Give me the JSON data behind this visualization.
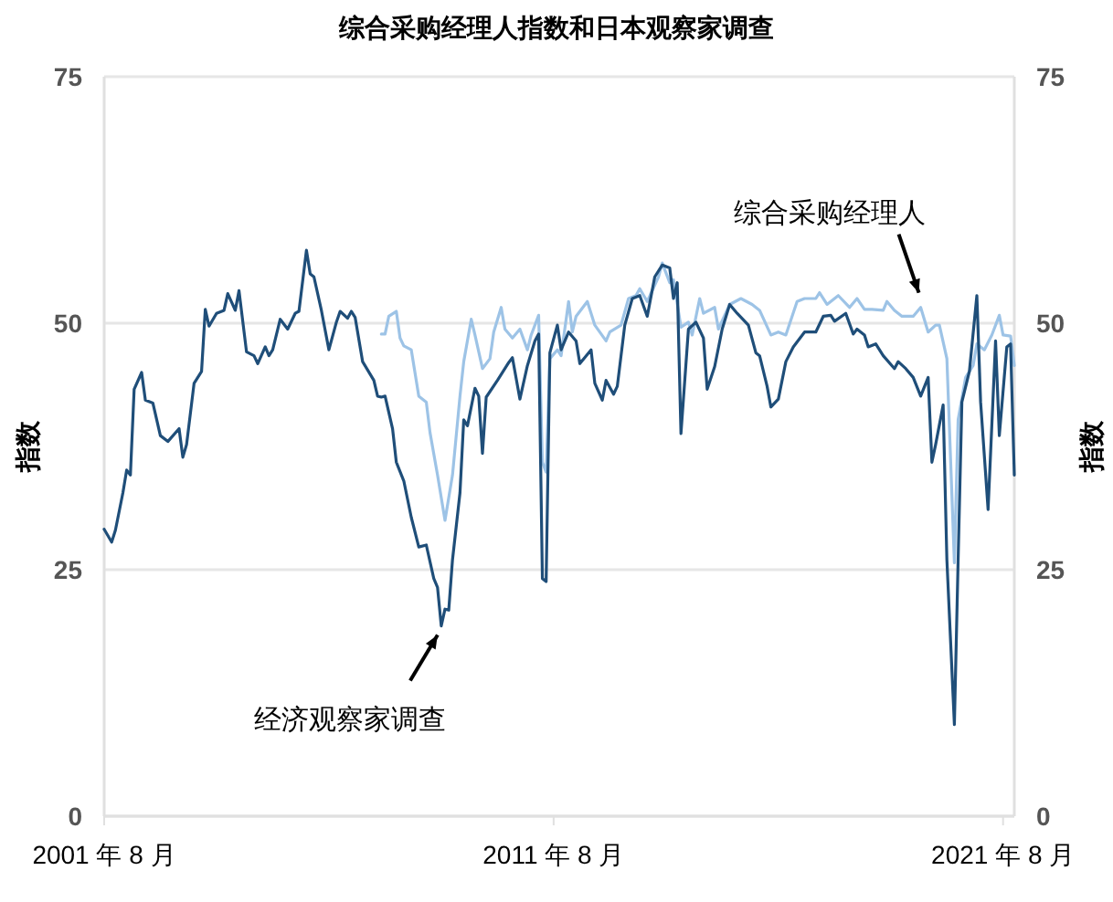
{
  "chart_data": {
    "type": "line",
    "title": "综合采购经理人指数和日本观察家调查",
    "ylabel": "指数",
    "y2label": "指数",
    "xlim": [
      "2001-08",
      "2021-11"
    ],
    "xticks": [
      {
        "value": "2001-08",
        "label": "2001 年 8 月"
      },
      {
        "value": "2011-08",
        "label": "2011 年 8 月"
      },
      {
        "value": "2021-08",
        "label": "2021 年 8 月"
      }
    ],
    "ylim": [
      0,
      75
    ],
    "yticks": [
      0,
      25,
      50,
      75
    ],
    "y2lim": [
      0,
      75
    ],
    "y2ticks": [
      0,
      25,
      50,
      75
    ],
    "grid": "y",
    "series": [
      {
        "color": "#1f4e79",
        "x": [
          "2001-08",
          "2001-10",
          "2001-11",
          "2002-01",
          "2002-02",
          "2002-03",
          "2002-04",
          "2002-06",
          "2002-07",
          "2002-09",
          "2002-11",
          "2003-01",
          "2003-04",
          "2003-05",
          "2003-06",
          "2003-08",
          "2003-10",
          "2003-11",
          "2003-12",
          "2004-02",
          "2004-04",
          "2004-05",
          "2004-07",
          "2004-08",
          "2004-10",
          "2004-12",
          "2005-01",
          "2005-03",
          "2005-04",
          "2005-05",
          "2005-07",
          "2005-09",
          "2005-11",
          "2005-12",
          "2006-02",
          "2006-03",
          "2006-04",
          "2006-06",
          "2006-08",
          "2006-10",
          "2006-11",
          "2007-01",
          "2007-02",
          "2007-03",
          "2007-05",
          "2007-08",
          "2007-09",
          "2007-10",
          "2007-11",
          "2008-01",
          "2008-02",
          "2008-04",
          "2008-06",
          "2008-08",
          "2008-10",
          "2008-12",
          "2009-01",
          "2009-02",
          "2009-03",
          "2009-04",
          "2009-05",
          "2009-07",
          "2009-08",
          "2009-09",
          "2009-11",
          "2009-12",
          "2010-01",
          "2010-02",
          "2010-05",
          "2010-08",
          "2010-09",
          "2010-11",
          "2011-01",
          "2011-03",
          "2011-04",
          "2011-05",
          "2011-06",
          "2011-07",
          "2011-09",
          "2011-10",
          "2011-12",
          "2012-02",
          "2012-03",
          "2012-06",
          "2012-07",
          "2012-09",
          "2012-10",
          "2012-12",
          "2013-01",
          "2013-03",
          "2013-05",
          "2013-07",
          "2013-09",
          "2013-11",
          "2014-01",
          "2014-03",
          "2014-04",
          "2014-05",
          "2014-06",
          "2014-08",
          "2014-10",
          "2014-12",
          "2015-01",
          "2015-03",
          "2015-05",
          "2015-07",
          "2015-09",
          "2015-12",
          "2016-02",
          "2016-03",
          "2016-05",
          "2016-06",
          "2016-08",
          "2016-10",
          "2016-12",
          "2017-03",
          "2017-06",
          "2017-08",
          "2017-10",
          "2017-11",
          "2018-02",
          "2018-04",
          "2018-05",
          "2018-07",
          "2018-08",
          "2018-10",
          "2018-12",
          "2019-03",
          "2019-04",
          "2019-06",
          "2019-08",
          "2019-10",
          "2019-12",
          "2020-01",
          "2020-02",
          "2020-04",
          "2020-05",
          "2020-07",
          "2020-08",
          "2020-09",
          "2020-11",
          "2021-01",
          "2021-02",
          "2021-04",
          "2021-06",
          "2021-07",
          "2021-09",
          "2021-10",
          "2021-11"
        ],
        "values": [
          29.1,
          27.8,
          29,
          32.8,
          35.1,
          34.6,
          43.3,
          45,
          42.2,
          41.9,
          38.6,
          38,
          39.3,
          36.4,
          37.7,
          43.9,
          45.1,
          51.4,
          49.7,
          51,
          51.3,
          53,
          51.3,
          53.3,
          47.1,
          46.7,
          45.9,
          47.6,
          46.7,
          47.3,
          50.4,
          49.4,
          51,
          51.2,
          57.4,
          55,
          54.7,
          51.3,
          47.3,
          50.1,
          51.2,
          50.5,
          51.2,
          50.6,
          46.1,
          44.2,
          42.6,
          42.5,
          42.6,
          39.3,
          35.9,
          34,
          30.3,
          27.3,
          27.5,
          24.1,
          23.2,
          19.3,
          21,
          20.9,
          26,
          32.8,
          40.2,
          39.6,
          43.4,
          42.6,
          36.8,
          42.5,
          44.2,
          46,
          46.5,
          42.3,
          45.7,
          48.2,
          48.9,
          24.1,
          23.8,
          47,
          49.8,
          47.3,
          49.1,
          48.2,
          45.9,
          47.3,
          43.9,
          42.2,
          44.2,
          42.8,
          43.6,
          49.8,
          52.5,
          52.8,
          50.7,
          54.7,
          55.9,
          55.6,
          52.5,
          54.1,
          38.8,
          49.4,
          50.1,
          48.5,
          43.3,
          45.6,
          49.4,
          51.9,
          51,
          49.8,
          47,
          46.7,
          43.6,
          41.5,
          42.3,
          46.1,
          47.6,
          49.1,
          49.1,
          50.7,
          50.8,
          50.2,
          51,
          48.9,
          49.4,
          48.8,
          47.6,
          47.9,
          46.7,
          45.4,
          46.1,
          45.4,
          44.5,
          42.6,
          44.5,
          35.9,
          37.7,
          41.7,
          26,
          9.3,
          26,
          42,
          45.1,
          52.8,
          42,
          31.1,
          48.2,
          38.6,
          47.6,
          47.9,
          34.6
        ]
      },
      {
        "color": "#9dc3e6",
        "x": [
          "2007-10",
          "2007-11",
          "2007-12",
          "2008-02",
          "2008-03",
          "2008-04",
          "2008-06",
          "2008-08",
          "2008-10",
          "2008-11",
          "2009-01",
          "2009-03",
          "2009-05",
          "2009-07",
          "2009-08",
          "2009-10",
          "2009-11",
          "2010-01",
          "2010-03",
          "2010-04",
          "2010-06",
          "2010-07",
          "2010-09",
          "2010-11",
          "2011-01",
          "2011-02",
          "2011-04",
          "2011-05",
          "2011-06",
          "2011-07",
          "2011-09",
          "2011-10",
          "2011-12",
          "2012-01",
          "2012-02",
          "2012-05",
          "2012-07",
          "2012-10",
          "2012-11",
          "2013-02",
          "2013-04",
          "2013-06",
          "2013-07",
          "2013-09",
          "2013-12",
          "2014-01",
          "2014-03",
          "2014-04",
          "2014-06",
          "2014-08",
          "2014-09",
          "2014-11",
          "2014-12",
          "2015-03",
          "2015-04",
          "2015-07",
          "2015-10",
          "2016-01",
          "2016-03",
          "2016-06",
          "2016-08",
          "2016-10",
          "2017-01",
          "2017-03",
          "2017-06",
          "2017-07",
          "2017-09",
          "2017-12",
          "2018-03",
          "2018-05",
          "2018-07",
          "2018-09",
          "2018-12",
          "2019-01",
          "2019-03",
          "2019-05",
          "2019-08",
          "2019-10",
          "2019-12",
          "2020-02",
          "2020-03",
          "2020-05",
          "2020-07",
          "2020-08",
          "2020-10",
          "2020-12",
          "2021-01",
          "2021-03",
          "2021-05",
          "2021-07",
          "2021-08",
          "2021-10",
          "2021-11"
        ],
        "values": [
          48.9,
          48.9,
          50.7,
          51.2,
          48.5,
          47.7,
          47.3,
          42.6,
          42,
          38.9,
          34.6,
          30,
          34.6,
          42.6,
          46.1,
          50.4,
          48.8,
          45.4,
          46.4,
          49.1,
          51.6,
          49.4,
          48.5,
          49.4,
          47.3,
          48.8,
          50.8,
          35.9,
          34.9,
          46.4,
          47.3,
          46.7,
          52.2,
          49.1,
          50.7,
          52.2,
          49.8,
          48.2,
          49.1,
          49.8,
          52.5,
          52.8,
          53.5,
          52.2,
          54.7,
          56.1,
          54.1,
          54.4,
          49.6,
          50.1,
          48.8,
          52.5,
          51,
          51.6,
          49.4,
          51.9,
          52.5,
          51.9,
          51.3,
          48.8,
          49.1,
          48.8,
          52.2,
          52.5,
          52.5,
          53.1,
          51.9,
          52.8,
          51.6,
          52.5,
          51.4,
          51.4,
          51.3,
          52.2,
          51.3,
          50.7,
          50.7,
          51.6,
          49.1,
          49.8,
          49.8,
          46.4,
          25.7,
          40.2,
          44.5,
          45.7,
          47.9,
          47.3,
          48.8,
          50.8,
          48.8,
          48.7,
          45.7
        ]
      }
    ],
    "annotations": [
      {
        "text": "综合采购经理人",
        "x": "2019-10",
        "y": 51.6
      },
      {
        "text": "经济观察家调查",
        "x": "2009-02",
        "y": 19.3
      }
    ]
  }
}
